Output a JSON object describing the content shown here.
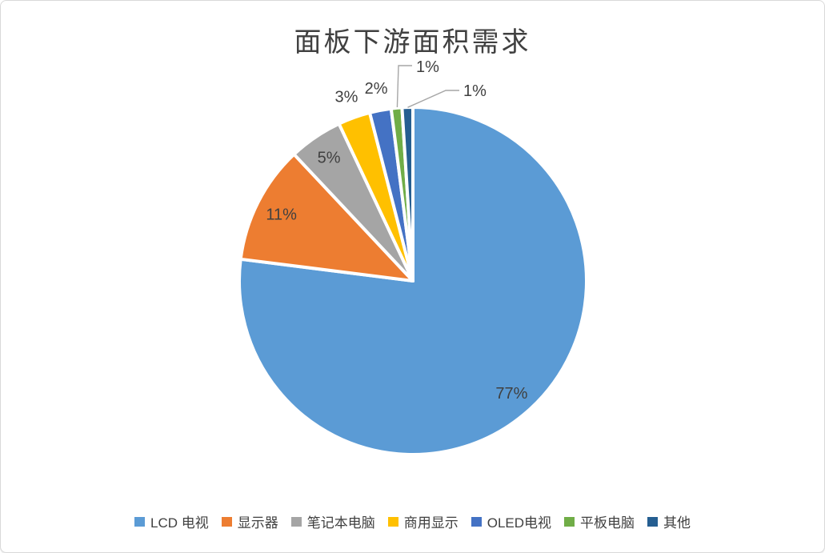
{
  "chart_data": {
    "type": "pie",
    "title": "面板下游面积需求",
    "categories": [
      "LCD 电视",
      "显示器",
      "笔记本电脑",
      "商用显示",
      "OLED电视",
      "平板电脑",
      "其他"
    ],
    "values": [
      77,
      11,
      5,
      3,
      2,
      1,
      1
    ],
    "data_labels": [
      "77%",
      "11%",
      "5%",
      "3%",
      "2%",
      "1%",
      "1%"
    ],
    "colors": [
      "#5B9BD5",
      "#ED7D31",
      "#A5A5A5",
      "#FFC000",
      "#4472C4",
      "#70AD47",
      "#255E91"
    ],
    "legend_position": "bottom",
    "start_angle_deg": 0,
    "direction": "clockwise",
    "slice_border_color": "#FFFFFF",
    "label_color": "#404040",
    "title_color": "#404040",
    "leader_line_color": "#A6A6A6",
    "frame_border_color": "#D9D9D9",
    "background": "#FFFFFF"
  }
}
